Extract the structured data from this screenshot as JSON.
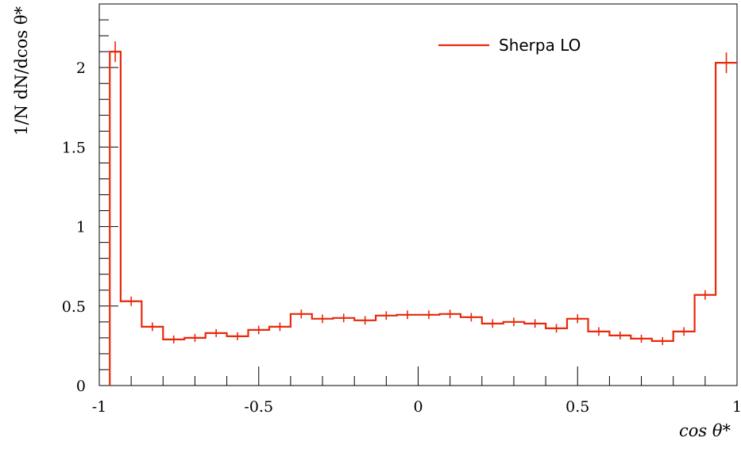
{
  "chart_data": {
    "type": "line",
    "title": "",
    "xlabel": "cos θ*",
    "ylabel": "1/N dN/dcos θ*",
    "xlim": [
      -1,
      1
    ],
    "ylim": [
      0,
      2.4
    ],
    "grid": false,
    "legend_position": "top-right",
    "x_ticks": [
      {
        "value": -1,
        "label": "-1"
      },
      {
        "value": -0.5,
        "label": "-0.5"
      },
      {
        "value": 0,
        "label": "0"
      },
      {
        "value": 0.5,
        "label": "0.5"
      },
      {
        "value": 1,
        "label": "1"
      }
    ],
    "y_ticks": [
      {
        "value": 0,
        "label": "0"
      },
      {
        "value": 0.5,
        "label": "0.5"
      },
      {
        "value": 1,
        "label": "1"
      },
      {
        "value": 1.5,
        "label": "1.5"
      },
      {
        "value": 2,
        "label": "2"
      }
    ],
    "bin_edges": [
      -0.967,
      -0.933,
      -0.867,
      -0.8,
      -0.733,
      -0.667,
      -0.6,
      -0.533,
      -0.467,
      -0.4,
      -0.333,
      -0.267,
      -0.2,
      -0.133,
      -0.067,
      0.0,
      0.067,
      0.133,
      0.2,
      0.267,
      0.333,
      0.4,
      0.467,
      0.533,
      0.6,
      0.667,
      0.733,
      0.8,
      0.867,
      0.933,
      1.0
    ],
    "series": [
      {
        "name": "Sherpa LO",
        "color": "#e8290b",
        "values": [
          2.1,
          0.53,
          0.37,
          0.29,
          0.3,
          0.33,
          0.31,
          0.35,
          0.37,
          0.45,
          0.42,
          0.425,
          0.41,
          0.44,
          0.445,
          0.445,
          0.45,
          0.43,
          0.39,
          0.4,
          0.39,
          0.36,
          0.42,
          0.34,
          0.315,
          0.295,
          0.28,
          0.34,
          0.57,
          2.03
        ],
        "errors": [
          0.05,
          0.015,
          0.012,
          0.01,
          0.01,
          0.01,
          0.01,
          0.012,
          0.012,
          0.013,
          0.012,
          0.012,
          0.012,
          0.012,
          0.012,
          0.012,
          0.012,
          0.012,
          0.012,
          0.012,
          0.012,
          0.012,
          0.013,
          0.012,
          0.01,
          0.01,
          0.01,
          0.012,
          0.015,
          0.05
        ]
      }
    ]
  }
}
